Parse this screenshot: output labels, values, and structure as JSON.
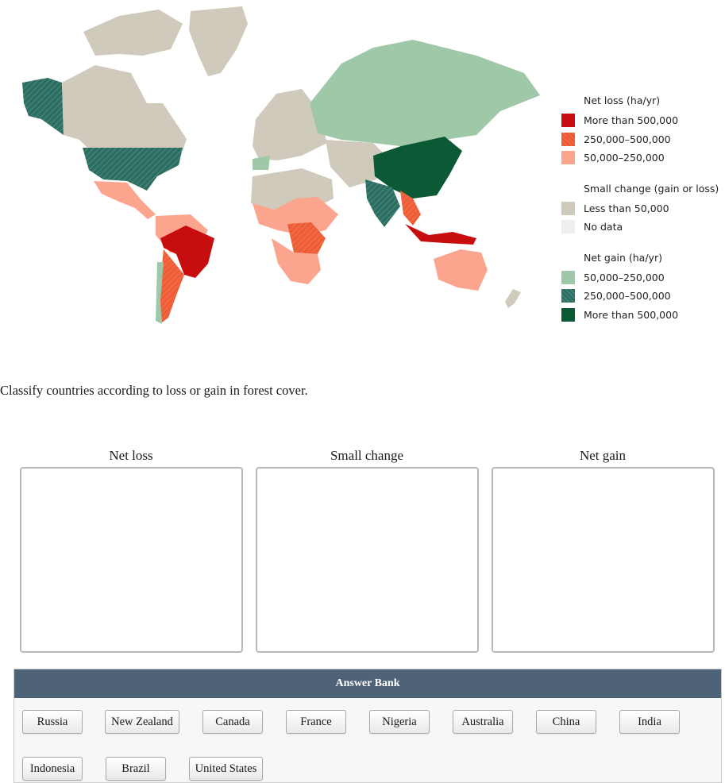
{
  "legend": {
    "loss_heading": "Net loss (ha/yr)",
    "loss_items": [
      {
        "label": "More than 500,000",
        "color": "#c70d0d"
      },
      {
        "label": "250,000–500,000",
        "color": "#f2653f"
      },
      {
        "label": "50,000–250,000",
        "color": "#fca58e"
      }
    ],
    "small_heading": "Small change (gain or loss)",
    "small_items": [
      {
        "label": "Less than 50,000",
        "color": "#cfcabb"
      },
      {
        "label": "No data",
        "color": "#eeeeee"
      }
    ],
    "gain_heading": "Net gain (ha/yr)",
    "gain_items": [
      {
        "label": "50,000–250,000",
        "color": "#9ec8a8"
      },
      {
        "label": "250,000–500,000",
        "color": "#2d6e62"
      },
      {
        "label": "More than 500,000",
        "color": "#0b5a35"
      }
    ]
  },
  "prompt": "Classify countries according to loss or gain in forest cover.",
  "bins": [
    {
      "label": "Net loss"
    },
    {
      "label": "Small change"
    },
    {
      "label": "Net gain"
    }
  ],
  "answer_bank": {
    "title": "Answer Bank",
    "items": [
      "Russia",
      "New Zealand",
      "Canada",
      "France",
      "Nigeria",
      "Australia",
      "China",
      "India",
      "Indonesia",
      "Brazil",
      "United States"
    ]
  }
}
